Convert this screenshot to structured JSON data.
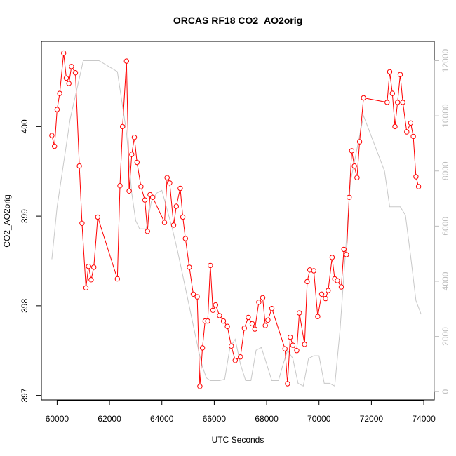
{
  "chart_data": {
    "type": "line",
    "title": "ORCAS RF18 CO2_AO2orig",
    "xlabel": "UTC Seconds",
    "ylabel": "CO2_AO2orig",
    "xlim": [
      59400,
      74400
    ],
    "ylim": [
      396.95,
      400.95
    ],
    "y2lim": [
      -300,
      12700
    ],
    "x_ticks": [
      "60000",
      "62000",
      "64000",
      "66000",
      "68000",
      "70000",
      "72000",
      "74000"
    ],
    "y_ticks": [
      "397",
      "398",
      "399",
      "400"
    ],
    "y2_ticks": [
      "0",
      "2000",
      "4000",
      "6000",
      "8000",
      "10000",
      "12000"
    ],
    "colors": {
      "series": "#ff0000",
      "altitude": "#c8c8c8",
      "axis": "#000000",
      "right_axis": "#bdbdbd"
    },
    "series": [
      {
        "color": "#ff0000",
        "marker": "open-circle",
        "x": [
          59800,
          59900,
          60000,
          60100,
          60250,
          60350,
          60450,
          60550,
          60700,
          60850,
          60950,
          61100,
          61200,
          61300,
          61400,
          61550,
          62300,
          62400,
          62500,
          62650,
          62750,
          62850,
          62950,
          63050,
          63200,
          63350,
          63450,
          63550,
          63650,
          64100,
          64200,
          64300,
          64450,
          64550,
          64700,
          64800,
          64900,
          65050,
          65200,
          65350,
          65450,
          65550,
          65650,
          65750,
          65850,
          65950,
          66050,
          66200,
          66350,
          66500,
          66650,
          66800,
          67000,
          67150,
          67300,
          67450,
          67550,
          67700,
          67850,
          67950,
          68050,
          68200,
          68700,
          68800,
          68900,
          69000,
          69150,
          69250,
          69450,
          69550,
          69650,
          69800,
          69950,
          70100,
          70250,
          70350,
          70500,
          70600,
          70700,
          70850,
          70950,
          71050,
          71150,
          71250,
          71350,
          71450,
          71550,
          71700,
          72600,
          72700,
          72800,
          72900,
          73000,
          73100,
          73200,
          73350,
          73500,
          73600,
          73700,
          73800
        ],
        "y": [
          399.9,
          399.78,
          400.19,
          400.37,
          400.82,
          400.54,
          400.48,
          400.67,
          400.6,
          399.56,
          398.92,
          398.2,
          398.44,
          398.29,
          398.43,
          398.99,
          398.3,
          399.34,
          400.0,
          400.73,
          399.28,
          399.69,
          399.88,
          399.6,
          399.33,
          399.18,
          398.83,
          399.24,
          399.21,
          398.93,
          399.43,
          399.37,
          398.9,
          399.11,
          399.31,
          398.99,
          398.75,
          398.43,
          398.13,
          398.1,
          397.1,
          397.53,
          397.83,
          397.83,
          398.45,
          397.95,
          398.01,
          397.89,
          397.83,
          397.77,
          397.55,
          397.39,
          397.43,
          397.75,
          397.87,
          397.8,
          397.74,
          398.04,
          398.09,
          397.78,
          397.84,
          397.97,
          397.52,
          397.13,
          397.65,
          397.56,
          397.5,
          397.92,
          397.57,
          398.27,
          398.4,
          398.39,
          397.88,
          398.13,
          398.08,
          398.17,
          398.54,
          398.3,
          398.28,
          398.21,
          398.63,
          398.57,
          399.21,
          399.73,
          399.56,
          399.43,
          399.83,
          400.32,
          400.27,
          400.61,
          400.37,
          400.0,
          400.27,
          400.58,
          400.27,
          399.94,
          400.04,
          399.89,
          399.44,
          399.33
        ]
      },
      {
        "color": "#c8c8c8",
        "axis": "right",
        "x": [
          59800,
          60000,
          60500,
          61000,
          61600,
          62300,
          62650,
          62850,
          63000,
          63150,
          63400,
          63600,
          63800,
          64000,
          64200,
          64400,
          64600,
          64800,
          65000,
          65200,
          65400,
          65550,
          65700,
          65850,
          66000,
          66200,
          66400,
          66600,
          66800,
          67000,
          67200,
          67400,
          67600,
          67800,
          68000,
          68200,
          68450,
          68600,
          68800,
          69000,
          69200,
          69400,
          69600,
          69800,
          70000,
          70200,
          70400,
          70600,
          70800,
          71200,
          71700,
          72500,
          72700,
          72900,
          73100,
          73300,
          73500,
          73700,
          73900
        ],
        "y": [
          4800,
          6700,
          9900,
          12000,
          12000,
          11600,
          9400,
          7200,
          6200,
          5900,
          5900,
          6900,
          7200,
          7300,
          6600,
          5900,
          5100,
          4200,
          3300,
          2400,
          1500,
          900,
          500,
          400,
          400,
          400,
          450,
          1600,
          1900,
          1000,
          400,
          400,
          1500,
          1600,
          1000,
          400,
          400,
          900,
          1500,
          1200,
          300,
          200,
          1200,
          1300,
          1300,
          300,
          300,
          200,
          2200,
          7600,
          10000,
          8000,
          6700,
          6700,
          6700,
          6400,
          4900,
          3300,
          2800
        ]
      }
    ]
  }
}
